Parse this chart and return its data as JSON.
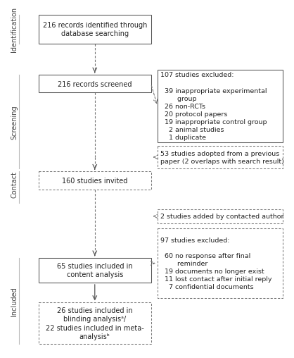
{
  "bg_color": "#ffffff",
  "solid_edge": "#555555",
  "dashed_edge": "#777777",
  "text_color": "#222222",
  "arrow_solid": "#555555",
  "arrow_dashed": "#777777",
  "sidebar_line": "#bbbbbb",
  "identification_label": "Identification",
  "screening_label": "Screening",
  "contact_label": "Contact",
  "included_label": "Included",
  "box1_text": "216 records identified through\ndatabase searching",
  "box2_text": "216 records screened",
  "box3_text": "160 studies invited",
  "box4_text": "65 studies included in\ncontent analysis",
  "box5_text": "26 studies included in\nblinding analysisᵃ/\n22 studies included in meta-\nanalysisᵇ",
  "right1_text": "107 studies excluded:\n\n  39 inappropriate experimental\n        group\n  26 non-RCTs\n  20 protocol papers\n  19 inappropriate control group\n    2 animal studies\n    1 duplicate",
  "right2_text": "53 studies adopted from a previous\npaper (2 overlaps with search result)",
  "right3_text": "2 studies added by contacted author",
  "right4_text": "97 studies excluded:\n\n  60 no response after final\n        reminder\n  19 documents no longer exist\n  11 lost contact after initial reply\n    7 confidential documents",
  "font_size_box": 7.0,
  "font_size_side": 6.8,
  "font_size_label": 7.0,
  "figw": 4.25,
  "figh": 4.95,
  "dpi": 100
}
